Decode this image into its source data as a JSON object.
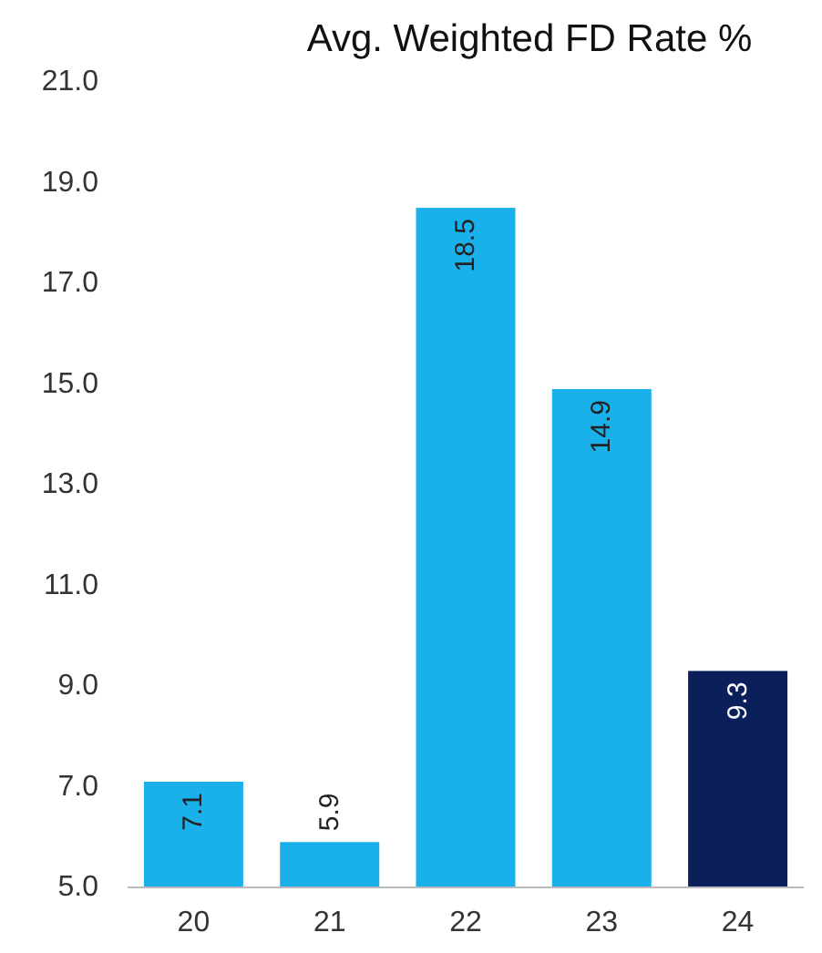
{
  "chart_data": {
    "type": "bar",
    "title": "Avg. Weighted FD Rate %",
    "categories": [
      "20",
      "21",
      "22",
      "23",
      "24"
    ],
    "values": [
      7.1,
      5.9,
      18.5,
      14.9,
      9.3
    ],
    "colors": [
      "#1ab0ea",
      "#1ab0ea",
      "#1ab0ea",
      "#1ab0ea",
      "#0b1f5b"
    ],
    "ylim": [
      5,
      21
    ],
    "yticks": [
      {
        "value": 5,
        "label": "5.0"
      },
      {
        "value": 7,
        "label": "7.0"
      },
      {
        "value": 9,
        "label": "9.0"
      },
      {
        "value": 11,
        "label": "11.0"
      },
      {
        "value": 13,
        "label": "13.0"
      },
      {
        "value": 15,
        "label": "15.0"
      },
      {
        "value": 17,
        "label": "17.0"
      },
      {
        "value": 19,
        "label": "19.0"
      },
      {
        "value": 21,
        "label": "21.0"
      }
    ],
    "data_labels": true,
    "grid": false
  }
}
